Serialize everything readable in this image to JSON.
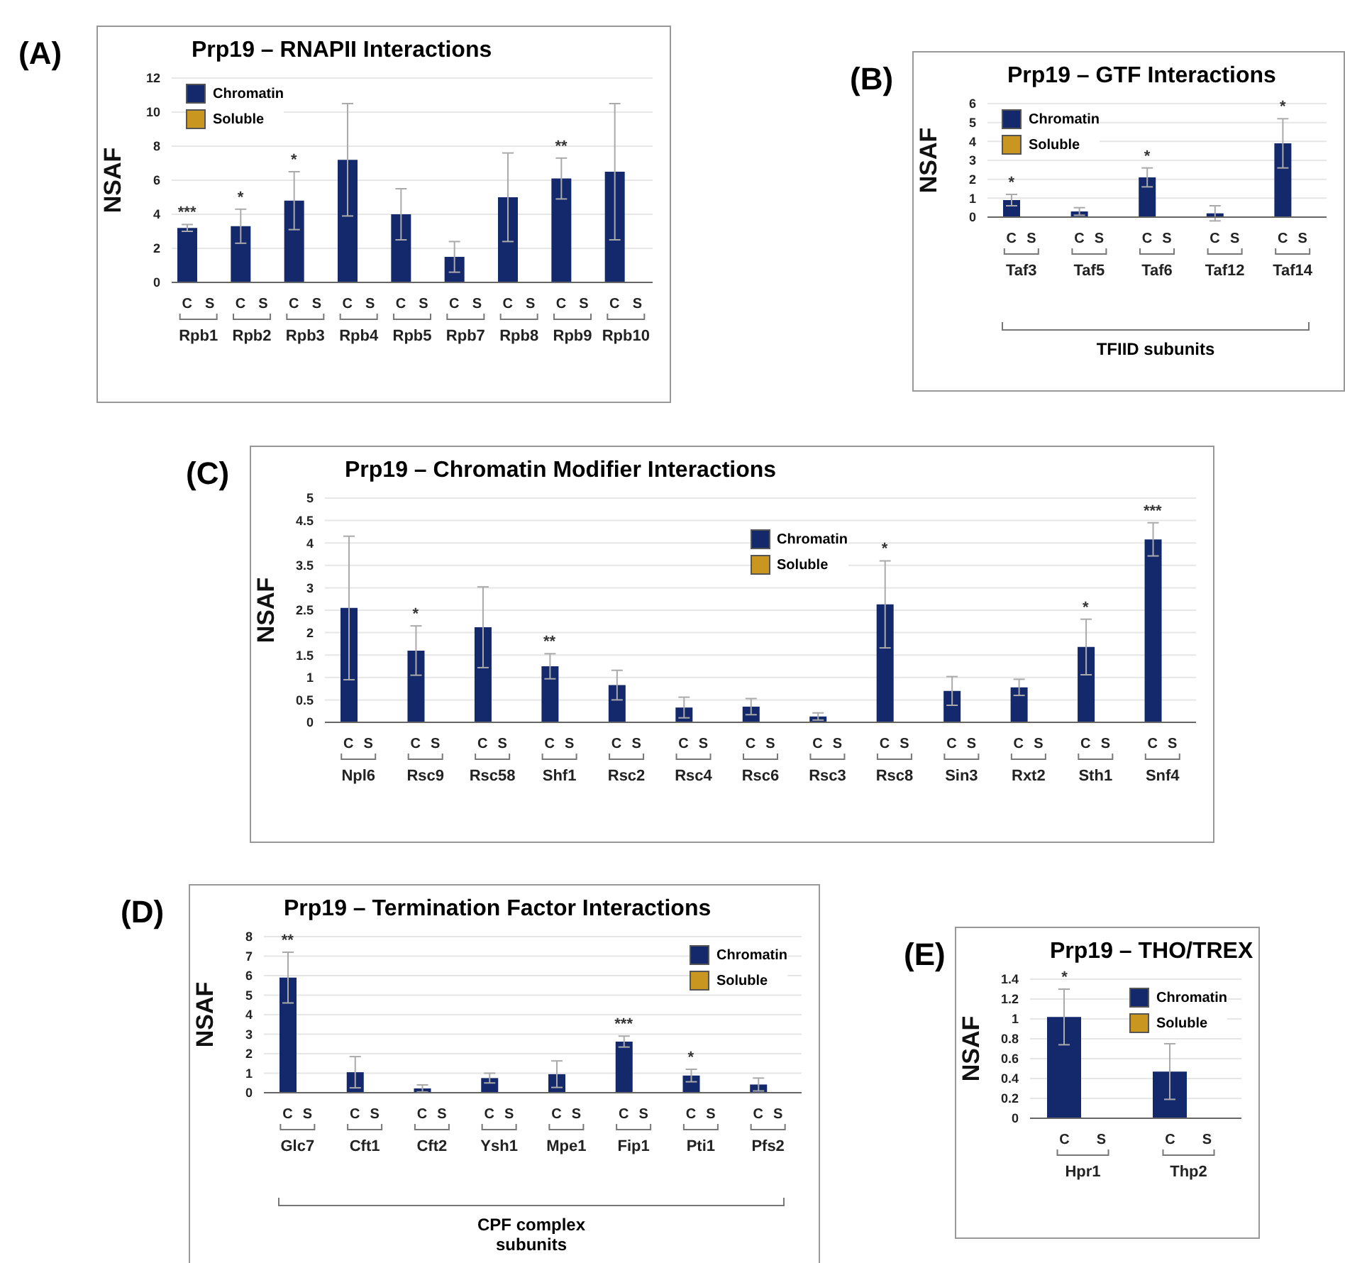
{
  "chart_data": [
    {
      "type": "bar",
      "title": "Prp19 – RNAPII Interactions",
      "ylabel": "NSAF",
      "categories": [
        "Rpb1",
        "Rpb2",
        "Rpb3",
        "Rpb4",
        "Rpb5",
        "Rpb7",
        "Rpb8",
        "Rpb9",
        "Rpb10"
      ],
      "series": [
        {
          "name": "Chromatin",
          "color": "#14296b",
          "values": [
            3.2,
            3.3,
            4.8,
            7.2,
            4.0,
            1.5,
            5.0,
            6.1,
            6.5
          ],
          "errors": [
            0.2,
            1.0,
            1.7,
            3.3,
            1.5,
            0.9,
            2.6,
            1.2,
            4.0
          ],
          "value_labels": [
            "***",
            "*",
            "*",
            null,
            null,
            null,
            null,
            "**",
            null
          ]
        },
        {
          "name": "Soluble",
          "color": "#c9971f",
          "values": [
            0,
            0,
            0,
            0,
            0,
            0,
            0,
            0,
            0
          ]
        }
      ],
      "ylim": [
        0,
        12
      ],
      "yticks": [
        0,
        2,
        4,
        6,
        8,
        10,
        12
      ],
      "grid": "y",
      "legend": "top left",
      "annotations": [
        "(A)",
        "C",
        "S"
      ]
    },
    {
      "type": "bar",
      "title": "Prp19 – GTF Interactions",
      "ylabel": "NSAF",
      "xlabel": "TFIID subunits",
      "categories": [
        "Taf3",
        "Taf5",
        "Taf6",
        "Taf12",
        "Taf14"
      ],
      "series": [
        {
          "name": "Chromatin",
          "color": "#14296b",
          "values": [
            0.9,
            0.3,
            2.1,
            0.2,
            3.9
          ],
          "errors": [
            0.3,
            0.2,
            0.5,
            0.4,
            1.3
          ],
          "value_labels": [
            "*",
            null,
            "*",
            null,
            "*"
          ]
        },
        {
          "name": "Soluble",
          "color": "#c9971f",
          "values": [
            0,
            0,
            0,
            0,
            0
          ]
        }
      ],
      "ylim": [
        0,
        6
      ],
      "yticks": [
        0,
        1,
        2,
        3,
        4,
        5,
        6
      ],
      "grid": "y",
      "legend": "top left",
      "annotations": [
        "(B)",
        "C",
        "S"
      ]
    },
    {
      "type": "bar",
      "title": "Prp19 – Chromatin Modifier Interactions",
      "ylabel": "NSAF",
      "categories": [
        "Npl6",
        "Rsc9",
        "Rsc58",
        "Shf1",
        "Rsc2",
        "Rsc4",
        "Rsc6",
        "Rsc3",
        "Rsc8",
        "Sin3",
        "Rxt2",
        "Sth1",
        "Snf4"
      ],
      "series": [
        {
          "name": "Chromatin",
          "color": "#14296b",
          "values": [
            2.55,
            1.6,
            2.12,
            1.25,
            0.83,
            0.33,
            0.35,
            0.13,
            2.63,
            0.7,
            0.78,
            1.68,
            4.08
          ],
          "errors": [
            1.6,
            0.55,
            0.9,
            0.28,
            0.33,
            0.23,
            0.18,
            0.08,
            0.97,
            0.32,
            0.18,
            0.62,
            0.37
          ],
          "value_labels": [
            null,
            "*",
            null,
            "**",
            null,
            null,
            null,
            null,
            "*",
            null,
            null,
            "*",
            "***"
          ]
        },
        {
          "name": "Soluble",
          "color": "#c9971f",
          "values": [
            0,
            0,
            0,
            0,
            0,
            0,
            0,
            0,
            0,
            0,
            0,
            0,
            0
          ]
        }
      ],
      "ylim": [
        0,
        5
      ],
      "yticks": [
        0,
        0.5,
        1,
        1.5,
        2,
        2.5,
        3,
        3.5,
        4,
        4.5,
        5
      ],
      "grid": "y",
      "legend": "top",
      "annotations": [
        "(C)",
        "C",
        "S"
      ]
    },
    {
      "type": "bar",
      "title": "Prp19 – Termination Factor Interactions",
      "ylabel": "NSAF",
      "xlabel": "CPF complex subunits",
      "categories": [
        "Glc7",
        "Cft1",
        "Cft2",
        "Ysh1",
        "Mpe1",
        "Fip1",
        "Pti1",
        "Pfs2"
      ],
      "series": [
        {
          "name": "Chromatin",
          "color": "#14296b",
          "values": [
            5.9,
            1.05,
            0.22,
            0.75,
            0.95,
            2.62,
            0.88,
            0.42
          ],
          "errors": [
            1.3,
            0.8,
            0.18,
            0.25,
            0.68,
            0.28,
            0.32,
            0.33
          ],
          "value_labels": [
            "**",
            null,
            null,
            null,
            null,
            "***",
            "*",
            null
          ]
        },
        {
          "name": "Soluble",
          "color": "#c9971f",
          "values": [
            0,
            0,
            0,
            0,
            0,
            0,
            0,
            0
          ]
        }
      ],
      "ylim": [
        0,
        8
      ],
      "yticks": [
        0,
        1,
        2,
        3,
        4,
        5,
        6,
        7,
        8
      ],
      "grid": "y",
      "legend": "top right",
      "annotations": [
        "(D)",
        "C",
        "S"
      ]
    },
    {
      "type": "bar",
      "title": "Prp19 – THO/TREX",
      "ylabel": "NSAF",
      "categories": [
        "Hpr1",
        "Thp2"
      ],
      "series": [
        {
          "name": "Chromatin",
          "color": "#14296b",
          "values": [
            1.02,
            0.47
          ],
          "errors": [
            0.28,
            0.28
          ],
          "value_labels": [
            "*",
            null
          ]
        },
        {
          "name": "Soluble",
          "color": "#c9971f",
          "values": [
            0,
            0
          ]
        }
      ],
      "ylim": [
        0,
        1.4
      ],
      "yticks": [
        0,
        0.2,
        0.4,
        0.6,
        0.8,
        1,
        1.2,
        1.4
      ],
      "grid": "y",
      "legend": "top right",
      "annotations": [
        "(E)",
        "C",
        "S"
      ]
    }
  ]
}
